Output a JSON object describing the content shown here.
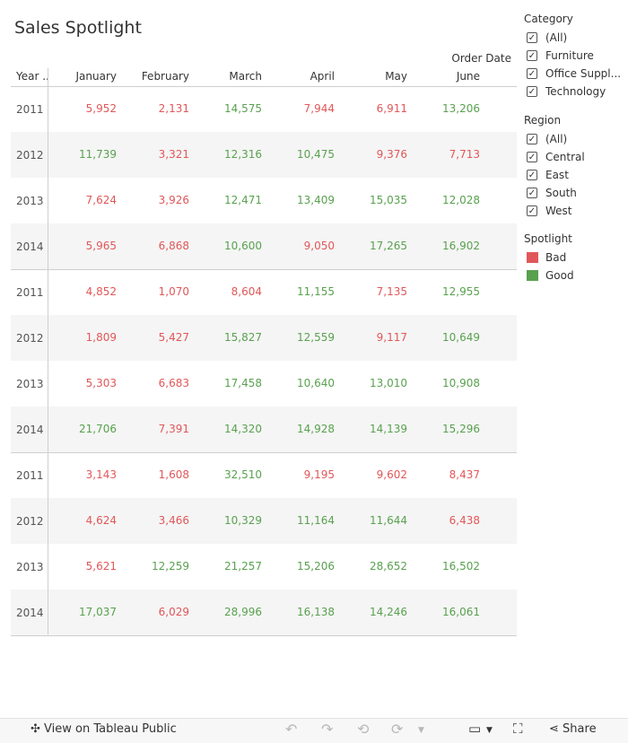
{
  "title": "Sales Spotlight",
  "header": {
    "order_date": "Order Date",
    "year_col": "Year ..",
    "months": [
      "January",
      "February",
      "March",
      "April",
      "May",
      "June"
    ]
  },
  "colors": {
    "bad": "#e15759",
    "good": "#59a14f"
  },
  "groups": [
    {
      "rows": [
        {
          "year": "2011",
          "values": [
            "5,952",
            "2,131",
            "14,575",
            "7,944",
            "6,911",
            "13,206"
          ],
          "flags": [
            "bad",
            "bad",
            "good",
            "bad",
            "bad",
            "good"
          ]
        },
        {
          "year": "2012",
          "values": [
            "11,739",
            "3,321",
            "12,316",
            "10,475",
            "9,376",
            "7,713"
          ],
          "flags": [
            "good",
            "bad",
            "good",
            "good",
            "bad",
            "bad"
          ]
        },
        {
          "year": "2013",
          "values": [
            "7,624",
            "3,926",
            "12,471",
            "13,409",
            "15,035",
            "12,028"
          ],
          "flags": [
            "bad",
            "bad",
            "good",
            "good",
            "good",
            "good"
          ]
        },
        {
          "year": "2014",
          "values": [
            "5,965",
            "6,868",
            "10,600",
            "9,050",
            "17,265",
            "16,902"
          ],
          "flags": [
            "bad",
            "bad",
            "good",
            "bad",
            "good",
            "good"
          ]
        }
      ]
    },
    {
      "rows": [
        {
          "year": "2011",
          "values": [
            "4,852",
            "1,070",
            "8,604",
            "11,155",
            "7,135",
            "12,955"
          ],
          "flags": [
            "bad",
            "bad",
            "bad",
            "good",
            "bad",
            "good"
          ]
        },
        {
          "year": "2012",
          "values": [
            "1,809",
            "5,427",
            "15,827",
            "12,559",
            "9,117",
            "10,649"
          ],
          "flags": [
            "bad",
            "bad",
            "good",
            "good",
            "bad",
            "good"
          ]
        },
        {
          "year": "2013",
          "values": [
            "5,303",
            "6,683",
            "17,458",
            "10,640",
            "13,010",
            "10,908"
          ],
          "flags": [
            "bad",
            "bad",
            "good",
            "good",
            "good",
            "good"
          ]
        },
        {
          "year": "2014",
          "values": [
            "21,706",
            "7,391",
            "14,320",
            "14,928",
            "14,139",
            "15,296"
          ],
          "flags": [
            "good",
            "bad",
            "good",
            "good",
            "good",
            "good"
          ]
        }
      ]
    },
    {
      "rows": [
        {
          "year": "2011",
          "values": [
            "3,143",
            "1,608",
            "32,510",
            "9,195",
            "9,602",
            "8,437"
          ],
          "flags": [
            "bad",
            "bad",
            "good",
            "bad",
            "bad",
            "bad"
          ]
        },
        {
          "year": "2012",
          "values": [
            "4,624",
            "3,466",
            "10,329",
            "11,164",
            "11,644",
            "6,438"
          ],
          "flags": [
            "bad",
            "bad",
            "good",
            "good",
            "good",
            "bad"
          ]
        },
        {
          "year": "2013",
          "values": [
            "5,621",
            "12,259",
            "21,257",
            "15,206",
            "28,652",
            "16,502"
          ],
          "flags": [
            "bad",
            "good",
            "good",
            "good",
            "good",
            "good"
          ]
        },
        {
          "year": "2014",
          "values": [
            "17,037",
            "6,029",
            "28,996",
            "16,138",
            "14,246",
            "16,061"
          ],
          "flags": [
            "good",
            "bad",
            "good",
            "good",
            "good",
            "good"
          ]
        }
      ]
    }
  ],
  "filters": {
    "category": {
      "title": "Category",
      "items": [
        "(All)",
        "Furniture",
        "Office Suppl...",
        "Technology"
      ]
    },
    "region": {
      "title": "Region",
      "items": [
        "(All)",
        "Central",
        "East",
        "South",
        "West"
      ]
    },
    "spotlight": {
      "title": "Spotlight",
      "items": [
        {
          "label": "Bad",
          "color": "#e15759"
        },
        {
          "label": "Good",
          "color": "#59a14f"
        }
      ]
    }
  },
  "toolbar": {
    "view_label": "View on Tableau Public",
    "share_label": "Share"
  }
}
